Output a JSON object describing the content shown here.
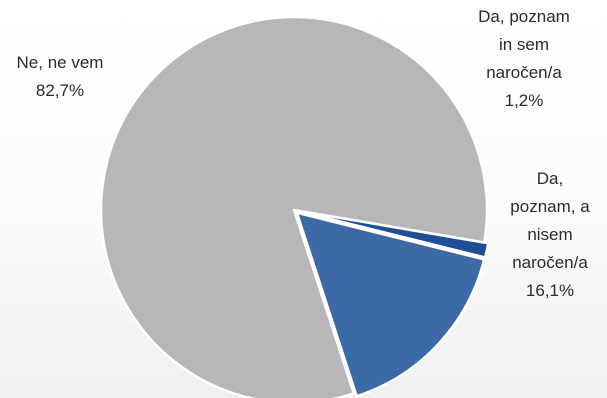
{
  "chart_data": {
    "type": "pie",
    "title": "",
    "slices": [
      {
        "label": "Ne, ne vem",
        "value": 82.7,
        "value_label": "82,7%",
        "color": "#b7b7b7"
      },
      {
        "label": "Da, poznam in sem naročen/a",
        "value": 1.2,
        "value_label": "1,2%",
        "color": "#1f4e96"
      },
      {
        "label": "Da, poznam, a nisem naročen/a",
        "value": 16.1,
        "value_label": "16,1%",
        "color": "#3b6aa6"
      }
    ],
    "label_lines": [
      [
        "Ne, ne vem",
        "82,7%"
      ],
      [
        "Da, poznam",
        "in sem",
        "naročen/a",
        "1,2%"
      ],
      [
        "Da,",
        "poznam, a",
        "nisem",
        "naročen/a",
        "16,1%"
      ]
    ],
    "legend": "none"
  }
}
